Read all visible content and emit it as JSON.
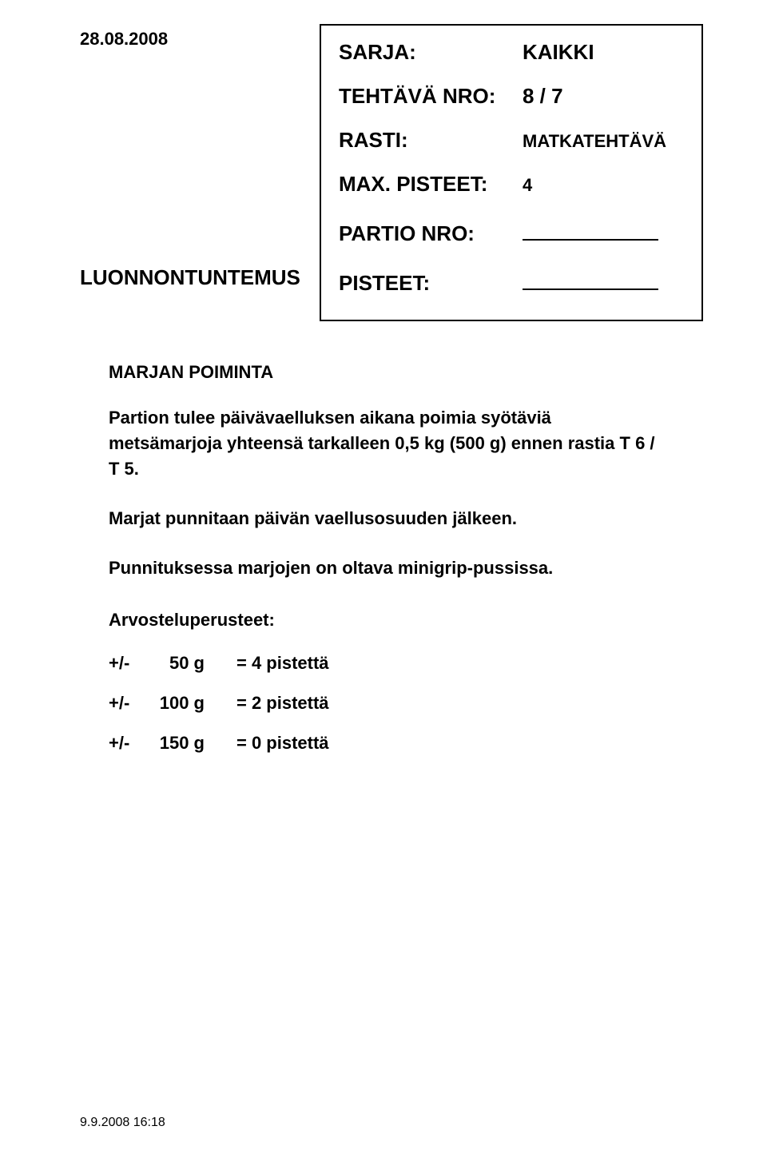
{
  "header": {
    "date": "28.08.2008",
    "box": {
      "sarja_label": "SARJA:",
      "sarja_value": "KAIKKI",
      "tehtava_label": "TEHTÄVÄ NRO:",
      "tehtava_value": "8 / 7",
      "rasti_label": "RASTI:",
      "rasti_value": "MATKATEHTÄVÄ",
      "maxpisteet_label": "MAX. PISTEET:",
      "maxpisteet_value": "4",
      "partio_label": "PARTIO NRO:",
      "pisteet_label": "PISTEET:"
    }
  },
  "section_title": "LUONNONTUNTEMUS",
  "subtitle": "MARJAN POIMINTA",
  "paragraphs": {
    "p1": "Partion tulee päivävaelluksen aikana poimia syötäviä metsämarjoja yhteensä tarkalleen 0,5 kg (500 g) ennen rastia T 6  / T 5.",
    "p2": "Marjat punnitaan päivän vaellusosuuden jälkeen.",
    "p3": "Punnituksessa marjojen on oltava minigrip-pussissa."
  },
  "criteria": {
    "title": "Arvosteluperusteet:",
    "rows": [
      {
        "pm": "+/-",
        "amount": "50 g",
        "eq": "= 4 pistettä"
      },
      {
        "pm": "+/-",
        "amount": "100 g",
        "eq": "= 2 pistettä"
      },
      {
        "pm": "+/-",
        "amount": "150 g",
        "eq": "= 0 pistettä"
      }
    ]
  },
  "footer": "9.9.2008 16:18"
}
